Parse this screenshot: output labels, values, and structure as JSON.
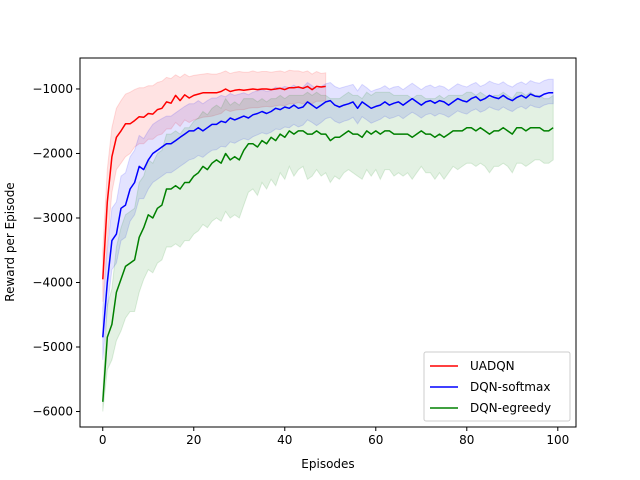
{
  "chart_data": {
    "type": "line",
    "title": "",
    "xlabel": "Episodes",
    "ylabel": "Reward per Episode",
    "xlim": [
      -5,
      104
    ],
    "ylim": [
      -6240,
      -520
    ],
    "xticks": [
      0,
      20,
      40,
      60,
      80,
      100
    ],
    "yticks": [
      -6000,
      -5000,
      -4000,
      -3000,
      -2000,
      -1000
    ],
    "grid": false,
    "legend": "bottom-right",
    "series": [
      {
        "name": "UADQN",
        "color": "#ff0000",
        "band_color": "#ff0000",
        "x_start": 0,
        "mean": [
          -3950,
          -2750,
          -2050,
          -1750,
          -1650,
          -1540,
          -1540,
          -1490,
          -1430,
          -1440,
          -1380,
          -1390,
          -1320,
          -1300,
          -1200,
          -1220,
          -1100,
          -1180,
          -1090,
          -1140,
          -1100,
          -1080,
          -1060,
          -1060,
          -1060,
          -1060,
          -1040,
          -1000,
          -1040,
          -1020,
          -1010,
          -1020,
          -1010,
          -1000,
          -1010,
          -1000,
          -1000,
          -1010,
          -1000,
          -990,
          -1010,
          -980,
          -980,
          -970,
          -990,
          -960,
          -1010,
          -960,
          -970,
          -960
        ],
        "lower": [
          -4300,
          -3400,
          -2600,
          -2250,
          -2150,
          -2050,
          -2000,
          -1900,
          -1850,
          -1850,
          -1780,
          -1780,
          -1720,
          -1700,
          -1620,
          -1620,
          -1520,
          -1580,
          -1480,
          -1520,
          -1480,
          -1460,
          -1440,
          -1430,
          -1420,
          -1400,
          -1380,
          -1320,
          -1350,
          -1330,
          -1320,
          -1320,
          -1300,
          -1290,
          -1290,
          -1280,
          -1270,
          -1280,
          -1260,
          -1250,
          -1260,
          -1230,
          -1230,
          -1210,
          -1230,
          -1200,
          -1230,
          -1190,
          -1190,
          -1180
        ],
        "upper": [
          -3500,
          -2250,
          -1600,
          -1300,
          -1180,
          -1080,
          -1050,
          -1010,
          -980,
          -980,
          -950,
          -950,
          -900,
          -880,
          -820,
          -840,
          -780,
          -820,
          -770,
          -810,
          -790,
          -780,
          -770,
          -760,
          -770,
          -770,
          -750,
          -720,
          -760,
          -740,
          -730,
          -740,
          -740,
          -720,
          -740,
          -730,
          -730,
          -740,
          -730,
          -720,
          -740,
          -710,
          -720,
          -720,
          -740,
          -720,
          -770,
          -730,
          -760,
          -750
        ]
      },
      {
        "name": "DQN-softmax",
        "color": "#0000ff",
        "band_color": "#0000ff",
        "x_start": 0,
        "mean": [
          -4850,
          -4000,
          -3350,
          -3250,
          -2850,
          -2800,
          -2550,
          -2450,
          -2200,
          -2250,
          -2100,
          -2000,
          -1950,
          -1900,
          -1850,
          -1850,
          -1800,
          -1750,
          -1700,
          -1650,
          -1650,
          -1600,
          -1650,
          -1600,
          -1550,
          -1550,
          -1500,
          -1520,
          -1450,
          -1480,
          -1450,
          -1420,
          -1450,
          -1400,
          -1380,
          -1350,
          -1380,
          -1350,
          -1300,
          -1320,
          -1280,
          -1300,
          -1250,
          -1300,
          -1280,
          -1200,
          -1250,
          -1300,
          -1250,
          -1200,
          -1180,
          -1250,
          -1280,
          -1250,
          -1230,
          -1200,
          -1300,
          -1200,
          -1250,
          -1300,
          -1270,
          -1250,
          -1200,
          -1250,
          -1220,
          -1200,
          -1250,
          -1200,
          -1150,
          -1200,
          -1250,
          -1200,
          -1180,
          -1220,
          -1180,
          -1200,
          -1250,
          -1200,
          -1150,
          -1180,
          -1200,
          -1150,
          -1120,
          -1180,
          -1150,
          -1100,
          -1130,
          -1150,
          -1100,
          -1150,
          -1180,
          -1130,
          -1100,
          -1140,
          -1080,
          -1110,
          -1120,
          -1080,
          -1060,
          -1060
        ],
        "lower": [
          -5200,
          -4400,
          -3800,
          -3700,
          -3350,
          -3300,
          -3050,
          -2950,
          -2700,
          -2700,
          -2550,
          -2450,
          -2400,
          -2350,
          -2300,
          -2300,
          -2250,
          -2200,
          -2150,
          -2100,
          -2080,
          -2030,
          -2060,
          -2000,
          -1950,
          -1940,
          -1890,
          -1900,
          -1820,
          -1840,
          -1800,
          -1770,
          -1790,
          -1740,
          -1710,
          -1680,
          -1700,
          -1670,
          -1620,
          -1630,
          -1590,
          -1600,
          -1550,
          -1590,
          -1560,
          -1480,
          -1520,
          -1570,
          -1520,
          -1460,
          -1440,
          -1500,
          -1530,
          -1500,
          -1480,
          -1440,
          -1540,
          -1430,
          -1480,
          -1530,
          -1500,
          -1470,
          -1420,
          -1460,
          -1440,
          -1410,
          -1460,
          -1410,
          -1360,
          -1400,
          -1450,
          -1400,
          -1380,
          -1420,
          -1380,
          -1400,
          -1440,
          -1390,
          -1340,
          -1370,
          -1390,
          -1340,
          -1310,
          -1360,
          -1330,
          -1280,
          -1310,
          -1330,
          -1280,
          -1320,
          -1350,
          -1300,
          -1270,
          -1310,
          -1250,
          -1280,
          -1290,
          -1250,
          -1230,
          -1230
        ],
        "upper": [
          -4400,
          -3500,
          -2850,
          -2750,
          -2350,
          -2300,
          -2050,
          -1950,
          -1720,
          -1770,
          -1650,
          -1550,
          -1500,
          -1460,
          -1420,
          -1420,
          -1370,
          -1320,
          -1270,
          -1230,
          -1230,
          -1180,
          -1230,
          -1180,
          -1140,
          -1140,
          -1100,
          -1120,
          -1070,
          -1100,
          -1080,
          -1060,
          -1090,
          -1050,
          -1030,
          -1010,
          -1040,
          -1020,
          -970,
          -990,
          -960,
          -980,
          -940,
          -990,
          -970,
          -900,
          -950,
          -1000,
          -960,
          -920,
          -900,
          -960,
          -990,
          -970,
          -950,
          -930,
          -1030,
          -930,
          -980,
          -1040,
          -1010,
          -990,
          -950,
          -1000,
          -970,
          -960,
          -1010,
          -960,
          -910,
          -960,
          -1010,
          -960,
          -940,
          -980,
          -950,
          -970,
          -1020,
          -970,
          -920,
          -950,
          -970,
          -930,
          -900,
          -960,
          -930,
          -880,
          -910,
          -930,
          -890,
          -940,
          -970,
          -920,
          -890,
          -930,
          -870,
          -900,
          -910,
          -870,
          -850,
          -850
        ]
      },
      {
        "name": "DQN-egreedy",
        "color": "#008000",
        "band_color": "#008000",
        "x_start": 0,
        "mean": [
          -5850,
          -4850,
          -4650,
          -4150,
          -3950,
          -3750,
          -3700,
          -3650,
          -3300,
          -3150,
          -2950,
          -3000,
          -2850,
          -2800,
          -2550,
          -2550,
          -2500,
          -2550,
          -2450,
          -2450,
          -2350,
          -2300,
          -2200,
          -2250,
          -2150,
          -2100,
          -2150,
          -2000,
          -2100,
          -2050,
          -2100,
          -1950,
          -1850,
          -1850,
          -1900,
          -1800,
          -1850,
          -1750,
          -1800,
          -1700,
          -1750,
          -1650,
          -1700,
          -1650,
          -1650,
          -1700,
          -1700,
          -1650,
          -1700,
          -1700,
          -1800,
          -1750,
          -1750,
          -1700,
          -1650,
          -1700,
          -1700,
          -1750,
          -1650,
          -1700,
          -1650,
          -1700,
          -1650,
          -1650,
          -1700,
          -1700,
          -1700,
          -1700,
          -1750,
          -1700,
          -1650,
          -1700,
          -1700,
          -1750,
          -1700,
          -1750,
          -1700,
          -1650,
          -1650,
          -1650,
          -1600,
          -1600,
          -1650,
          -1600,
          -1650,
          -1700,
          -1650,
          -1650,
          -1600,
          -1650,
          -1700,
          -1600,
          -1600,
          -1650,
          -1600,
          -1600,
          -1600,
          -1650,
          -1650,
          -1600
        ],
        "lower": [
          -6000,
          -5350,
          -5200,
          -4900,
          -4750,
          -4550,
          -4450,
          -4450,
          -4150,
          -3950,
          -3800,
          -3850,
          -3700,
          -3650,
          -3450,
          -3450,
          -3400,
          -3450,
          -3350,
          -3350,
          -3250,
          -3200,
          -3100,
          -3150,
          -3050,
          -3000,
          -3050,
          -2900,
          -3000,
          -2950,
          -3000,
          -2800,
          -2600,
          -2550,
          -2650,
          -2450,
          -2550,
          -2400,
          -2500,
          -2300,
          -2400,
          -2200,
          -2350,
          -2250,
          -2200,
          -2400,
          -2350,
          -2250,
          -2350,
          -2300,
          -2450,
          -2350,
          -2400,
          -2300,
          -2250,
          -2300,
          -2350,
          -2400,
          -2250,
          -2350,
          -2250,
          -2400,
          -2250,
          -2250,
          -2350,
          -2300,
          -2350,
          -2300,
          -2400,
          -2300,
          -2200,
          -2300,
          -2300,
          -2400,
          -2300,
          -2400,
          -2300,
          -2200,
          -2250,
          -2200,
          -2150,
          -2150,
          -2200,
          -2150,
          -2200,
          -2300,
          -2200,
          -2200,
          -2150,
          -2200,
          -2300,
          -2150,
          -2150,
          -2200,
          -2150,
          -2100,
          -2100,
          -2150,
          -2150,
          -2100
        ],
        "upper": [
          -5700,
          -4350,
          -4100,
          -3450,
          -3150,
          -2950,
          -2900,
          -2850,
          -2450,
          -2350,
          -2100,
          -2150,
          -2000,
          -1950,
          -1700,
          -1700,
          -1650,
          -1700,
          -1600,
          -1600,
          -1500,
          -1450,
          -1350,
          -1400,
          -1300,
          -1250,
          -1300,
          -1150,
          -1250,
          -1200,
          -1250,
          -1150,
          -1150,
          -1150,
          -1200,
          -1150,
          -1200,
          -1150,
          -1150,
          -1100,
          -1150,
          -1100,
          -1100,
          -1100,
          -1100,
          -1050,
          -1100,
          -1050,
          -1100,
          -1100,
          -1150,
          -1150,
          -1150,
          -1100,
          -1050,
          -1100,
          -1100,
          -1150,
          -1050,
          -1100,
          -1050,
          -1050,
          -1050,
          -1050,
          -1100,
          -1100,
          -1100,
          -1100,
          -1150,
          -1100,
          -1100,
          -1150,
          -1150,
          -1150,
          -1100,
          -1150,
          -1100,
          -1100,
          -1100,
          -1100,
          -1050,
          -1050,
          -1100,
          -1050,
          -1100,
          -1150,
          -1100,
          -1100,
          -1050,
          -1100,
          -1150,
          -1050,
          -1050,
          -1100,
          -1050,
          -1100,
          -1100,
          -1150,
          -1150,
          -1100
        ]
      }
    ]
  }
}
